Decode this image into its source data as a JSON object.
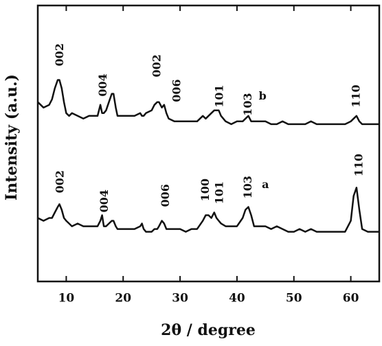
{
  "chart_data": {
    "type": "line",
    "xlabel": "2θ / degree",
    "ylabel": "Intensity (a.u.)",
    "xlim": [
      5,
      65
    ],
    "xticks": [
      10,
      20,
      30,
      40,
      50,
      60
    ],
    "ylim": [
      0,
      100
    ],
    "x": [
      5,
      6,
      7,
      7.5,
      8,
      8.5,
      8.8,
      9.2,
      9.6,
      10,
      10.5,
      11,
      12,
      13,
      14,
      15,
      15.5,
      16,
      16.3,
      16.6,
      17,
      17.5,
      18,
      18.3,
      18.7,
      19,
      20,
      21,
      22,
      23,
      23.3,
      23.6,
      24,
      25,
      25.5,
      26,
      26.3,
      26.8,
      27.2,
      27.6,
      28,
      29,
      30,
      31,
      32,
      33,
      34,
      34.5,
      35,
      35.5,
      36,
      36.4,
      36.8,
      37.2,
      38,
      39,
      40,
      41,
      41.5,
      42,
      42.5,
      43,
      44,
      45,
      46,
      47,
      48,
      49,
      50,
      51,
      52,
      53,
      54,
      55,
      56,
      57,
      58,
      59,
      60,
      60.5,
      61,
      61.5,
      62,
      63,
      64,
      65
    ],
    "series": [
      {
        "name": "b",
        "color": "#111111",
        "label_x": 44.5,
        "label_y": 67,
        "values": [
          65,
          63,
          64,
          66,
          70,
          73,
          73,
          70,
          65,
          61,
          60,
          61,
          60,
          59,
          60,
          60,
          60,
          64,
          61,
          61,
          62,
          65,
          68,
          68,
          63,
          60,
          60,
          60,
          60,
          61,
          60,
          60,
          61,
          62,
          64,
          65,
          65,
          63,
          64,
          61,
          59,
          58,
          58,
          58,
          58,
          58,
          60,
          59,
          60,
          61,
          62,
          62,
          62,
          60,
          58,
          57,
          58,
          58,
          59,
          60,
          58,
          58,
          58,
          58,
          57,
          57,
          58,
          57,
          57,
          57,
          57,
          58,
          57,
          57,
          57,
          57,
          57,
          57,
          58,
          59,
          60,
          58,
          57,
          57,
          57,
          57
        ],
        "peaks": [
          {
            "text": "002",
            "x": 8.9,
            "y": 78
          },
          {
            "text": "004",
            "x": 16.5,
            "y": 67
          },
          {
            "text": "002",
            "x": 26,
            "y": 74
          },
          {
            "text": "006",
            "x": 29.5,
            "y": 65
          },
          {
            "text": "101",
            "x": 37,
            "y": 63
          },
          {
            "text": "103",
            "x": 42,
            "y": 60
          },
          {
            "text": "110",
            "x": 61,
            "y": 63
          }
        ]
      },
      {
        "name": "a",
        "color": "#111111",
        "label_x": 45,
        "label_y": 35,
        "values": [
          23,
          22,
          23,
          23,
          25,
          27,
          28,
          26,
          23,
          22,
          21,
          20,
          21,
          20,
          20,
          20,
          20,
          22,
          24,
          20,
          20,
          21,
          22,
          22,
          20,
          19,
          19,
          19,
          19,
          20,
          21,
          19,
          18,
          18,
          19,
          19,
          20,
          22,
          21,
          19,
          19,
          19,
          19,
          18,
          19,
          19,
          22,
          24,
          24,
          23,
          25,
          23,
          22,
          21,
          20,
          20,
          20,
          23,
          26,
          27,
          24,
          20,
          20,
          20,
          19,
          20,
          19,
          18,
          18,
          19,
          18,
          19,
          18,
          18,
          18,
          18,
          18,
          18,
          22,
          31,
          34,
          26,
          19,
          18,
          18,
          18
        ],
        "peaks": [
          {
            "text": "002",
            "x": 9,
            "y": 32
          },
          {
            "text": "004",
            "x": 16.8,
            "y": 25
          },
          {
            "text": "006",
            "x": 27.5,
            "y": 27
          },
          {
            "text": "100",
            "x": 34.5,
            "y": 29
          },
          {
            "text": "101",
            "x": 37,
            "y": 28
          },
          {
            "text": "103",
            "x": 42,
            "y": 30
          },
          {
            "text": "110",
            "x": 61.5,
            "y": 38
          }
        ]
      }
    ]
  }
}
